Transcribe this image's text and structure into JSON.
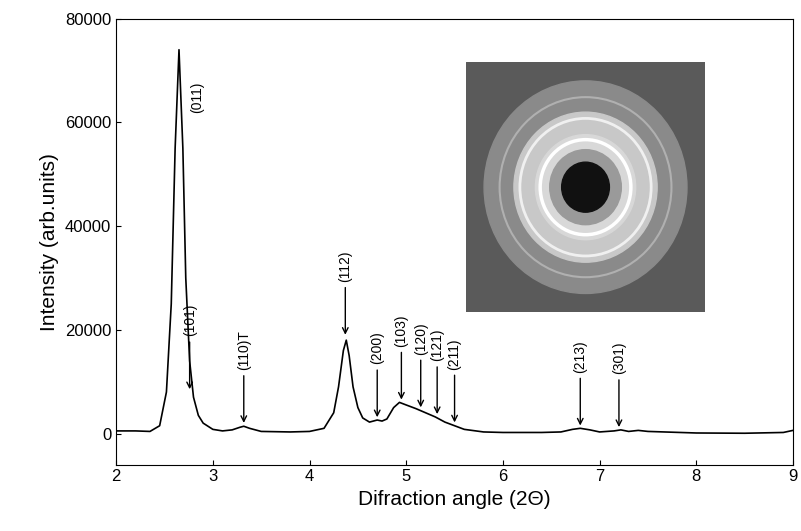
{
  "chart_data": {
    "type": "line",
    "x_label": "Difraction angle (2Θ)",
    "y_label": "Intensity (arb.units)",
    "x": [
      2.0,
      2.2,
      2.35,
      2.45,
      2.52,
      2.57,
      2.61,
      2.65,
      2.69,
      2.72,
      2.76,
      2.8,
      2.85,
      2.9,
      3.0,
      3.1,
      3.2,
      3.28,
      3.32,
      3.38,
      3.5,
      3.8,
      4.0,
      4.15,
      4.25,
      4.3,
      4.35,
      4.38,
      4.41,
      4.45,
      4.5,
      4.55,
      4.62,
      4.7,
      4.75,
      4.8,
      4.87,
      4.93,
      5.0,
      5.1,
      5.2,
      5.3,
      5.4,
      5.5,
      5.6,
      5.8,
      6.0,
      6.4,
      6.6,
      6.72,
      6.8,
      6.9,
      7.0,
      7.15,
      7.22,
      7.3,
      7.4,
      7.5,
      8.0,
      8.5,
      8.9,
      9.0
    ],
    "values": [
      500,
      500,
      400,
      1500,
      8000,
      25000,
      55000,
      74000,
      55000,
      30000,
      14000,
      7000,
      3500,
      2000,
      800,
      500,
      700,
      1200,
      1400,
      1000,
      400,
      300,
      400,
      1000,
      4000,
      9000,
      16000,
      18000,
      15000,
      9000,
      5000,
      3000,
      2200,
      2600,
      2400,
      2800,
      5000,
      6000,
      5500,
      4800,
      4000,
      3200,
      2200,
      1500,
      800,
      300,
      200,
      200,
      300,
      800,
      1000,
      700,
      300,
      500,
      700,
      400,
      600,
      400,
      100,
      50,
      200,
      600
    ],
    "color": "#000000",
    "xlim": [
      2,
      9
    ],
    "ylim": [
      -6000,
      80000
    ],
    "xticks": [
      2,
      3,
      4,
      5,
      6,
      7,
      8,
      9
    ],
    "yticks": [
      0,
      20000,
      40000,
      60000,
      80000
    ],
    "annotations": [
      {
        "text": "(011)",
        "x": 2.68,
        "y": 70000
      },
      {
        "text": "(101)",
        "x": 2.76,
        "y": 8000
      },
      {
        "text": "(110)T",
        "x": 3.32,
        "y": 1500
      },
      {
        "text": "(112)",
        "x": 4.37,
        "y": 18500
      },
      {
        "text": "(200)",
        "x": 4.7,
        "y": 2600
      },
      {
        "text": "(103)",
        "x": 4.95,
        "y": 6000
      },
      {
        "text": "(120)",
        "x": 5.15,
        "y": 4500
      },
      {
        "text": "(121)",
        "x": 5.32,
        "y": 3200
      },
      {
        "text": "(211)",
        "x": 5.5,
        "y": 1600
      },
      {
        "text": "(213)",
        "x": 6.8,
        "y": 1000
      },
      {
        "text": "(301)",
        "x": 7.2,
        "y": 700
      }
    ]
  }
}
